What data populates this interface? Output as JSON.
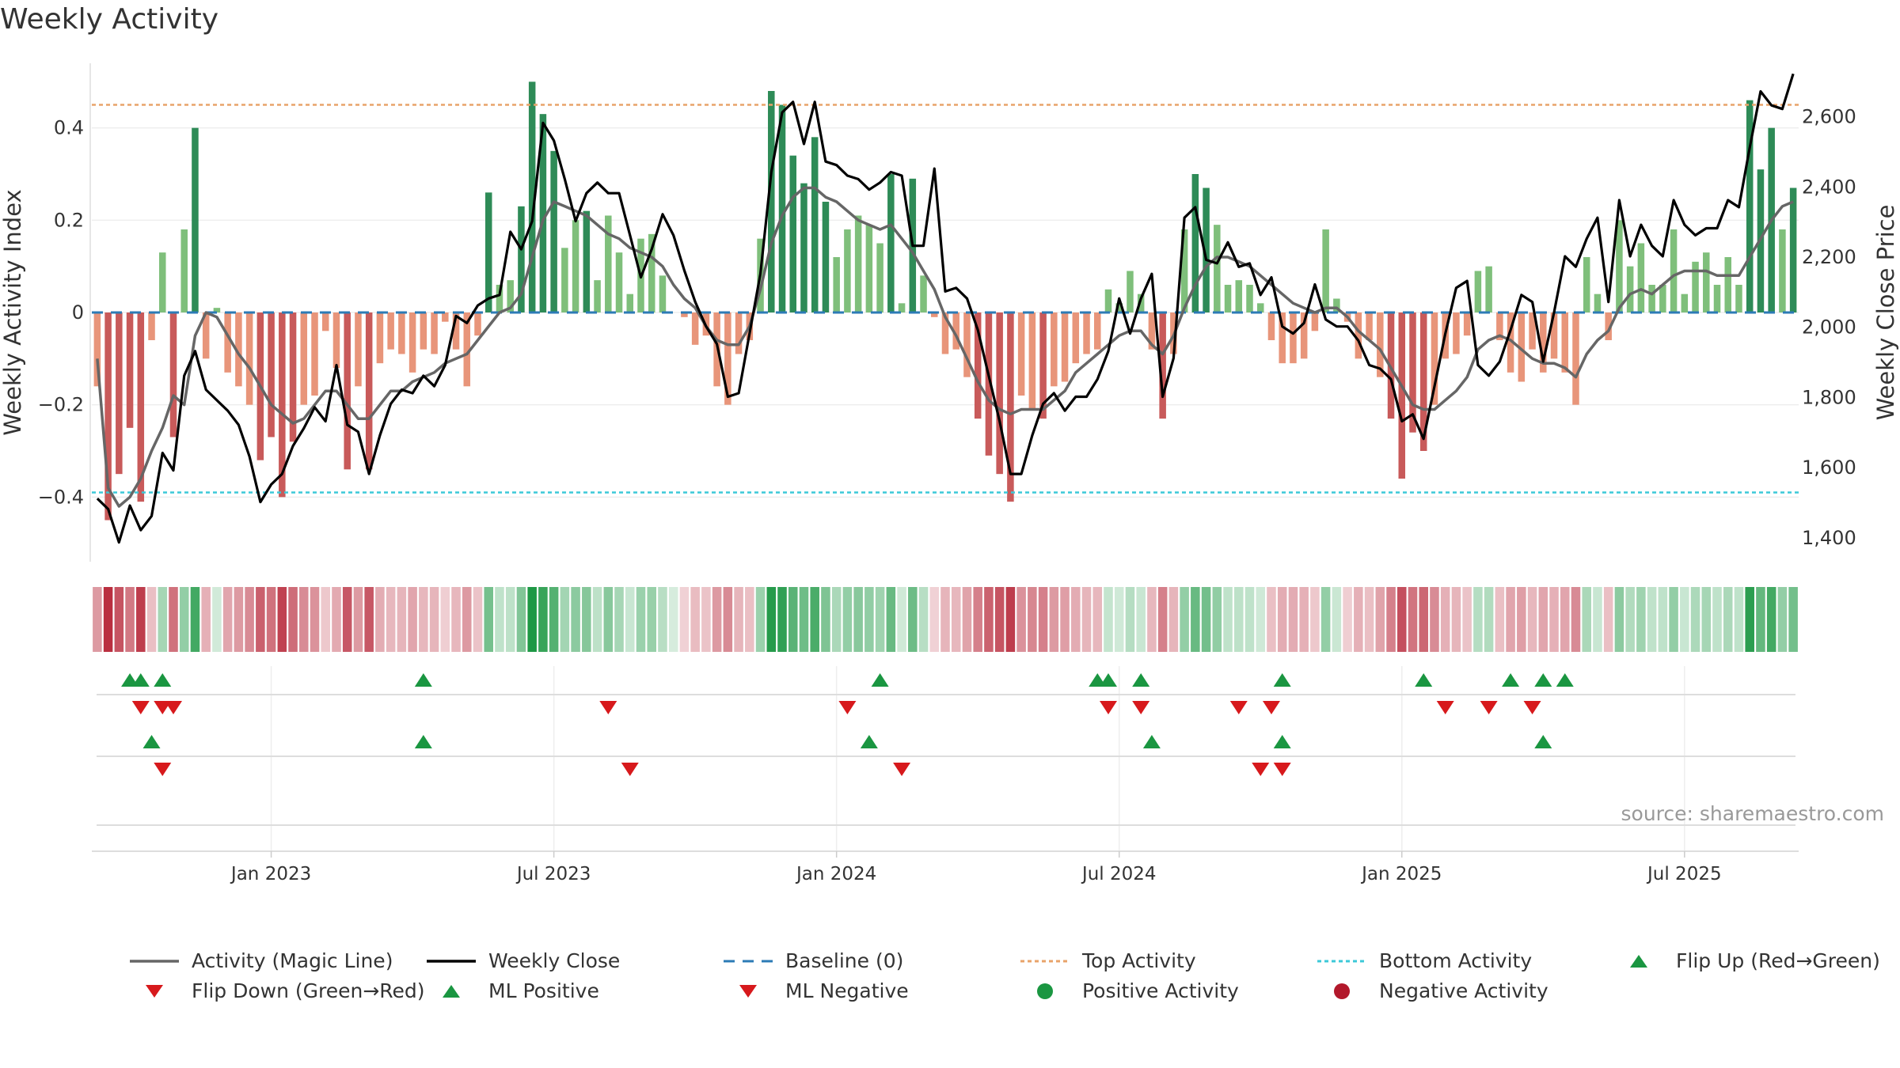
{
  "title": "Weekly Activity",
  "source_text": "source: sharemaestro.com",
  "chart_data": {
    "type": "bar",
    "title": "Weekly Activity",
    "ylabel_left": "Weekly Activity Index",
    "ylabel_right": "Weekly Close Price",
    "left_ylim": [
      -0.54,
      0.54
    ],
    "left_ticks": [
      0.4,
      0.2,
      0,
      -0.2,
      -0.4
    ],
    "left_tick_labels": [
      "0.4",
      "0.2",
      "0",
      "−0.2",
      "−0.4"
    ],
    "right_ylim": [
      1330,
      2750
    ],
    "right_ticks": [
      2600,
      2400,
      2200,
      2000,
      1800,
      1600,
      1400
    ],
    "right_tick_labels": [
      "2,600",
      "2,400",
      "2,200",
      "2,000",
      "1,800",
      "1,600",
      "1,400"
    ],
    "x_ticks": [
      "Jan 2023",
      "Jul 2023",
      "Jan 2024",
      "Jul 2024",
      "Jan 2025",
      "Jul 2025"
    ],
    "x_tick_weeks": [
      16,
      42,
      68,
      94,
      120,
      146
    ],
    "thresholds": {
      "top": 0.45,
      "bottom": -0.39,
      "baseline": 0
    },
    "colors": {
      "pos_strong": "#2e8b57",
      "pos_light": "#7fbf7b",
      "neg_strong": "#c85a5a",
      "neg_light": "#e8957a",
      "magic": "#666666",
      "close": "#000000",
      "top": "#e8a36a",
      "bottom": "#3cc8d8",
      "baseline": "#2c7bb6",
      "up": "#1a9641",
      "down": "#d7191c"
    },
    "activity": [
      -0.16,
      -0.45,
      -0.35,
      -0.25,
      -0.41,
      -0.06,
      0.13,
      -0.27,
      0.18,
      0.4,
      -0.1,
      0.01,
      -0.13,
      -0.16,
      -0.2,
      -0.32,
      -0.27,
      -0.4,
      -0.28,
      -0.2,
      -0.18,
      -0.04,
      -0.12,
      -0.34,
      -0.16,
      -0.34,
      -0.11,
      -0.08,
      -0.09,
      -0.13,
      -0.08,
      -0.09,
      -0.02,
      -0.08,
      -0.16,
      -0.05,
      0.26,
      0.06,
      0.07,
      0.23,
      0.5,
      0.43,
      0.35,
      0.14,
      0.2,
      0.22,
      0.07,
      0.21,
      0.13,
      0.04,
      0.16,
      0.17,
      0.08,
      0,
      -0.01,
      -0.07,
      -0.05,
      -0.16,
      -0.2,
      -0.09,
      -0.06,
      0.16,
      0.48,
      0.45,
      0.34,
      0.28,
      0.38,
      0.24,
      0.12,
      0.18,
      0.21,
      0.19,
      0.15,
      0.3,
      0.02,
      0.29,
      0.08,
      -0.01,
      -0.09,
      -0.08,
      -0.14,
      -0.23,
      -0.31,
      -0.35,
      -0.41,
      -0.18,
      -0.21,
      -0.23,
      -0.16,
      -0.15,
      -0.11,
      -0.09,
      -0.08,
      0.05,
      0.02,
      0.09,
      0.04,
      -0.08,
      -0.23,
      -0.09,
      0.18,
      0.3,
      0.27,
      0.19,
      0.06,
      0.07,
      0.06,
      0.02,
      -0.06,
      -0.11,
      -0.11,
      -0.1,
      -0.04,
      0.18,
      0.03,
      -0.02,
      -0.1,
      -0.06,
      -0.14,
      -0.23,
      -0.36,
      -0.26,
      -0.3,
      -0.2,
      -0.1,
      -0.09,
      -0.05,
      0.09,
      0.1,
      -0.06,
      -0.13,
      -0.15,
      -0.08,
      -0.13,
      -0.1,
      -0.13,
      -0.2,
      0.12,
      0.04,
      -0.06,
      0.2,
      0.1,
      0.15,
      0.06,
      0.06,
      0.18,
      0.04,
      0.11,
      0.13,
      0.06,
      0.12,
      0.06,
      0.46,
      0.31,
      0.4,
      0.18,
      0.27
    ],
    "magic_line": [
      -0.1,
      -0.38,
      -0.42,
      -0.4,
      -0.36,
      -0.3,
      -0.25,
      -0.18,
      -0.2,
      -0.05,
      0.0,
      -0.01,
      -0.05,
      -0.09,
      -0.12,
      -0.16,
      -0.2,
      -0.22,
      -0.24,
      -0.23,
      -0.2,
      -0.17,
      -0.17,
      -0.2,
      -0.23,
      -0.23,
      -0.2,
      -0.17,
      -0.17,
      -0.15,
      -0.14,
      -0.13,
      -0.11,
      -0.1,
      -0.09,
      -0.06,
      -0.03,
      -0.0,
      0.01,
      0.04,
      0.12,
      0.2,
      0.24,
      0.23,
      0.22,
      0.21,
      0.19,
      0.17,
      0.16,
      0.14,
      0.13,
      0.12,
      0.1,
      0.06,
      0.03,
      0.01,
      -0.03,
      -0.06,
      -0.07,
      -0.07,
      -0.03,
      0.05,
      0.15,
      0.21,
      0.25,
      0.27,
      0.27,
      0.25,
      0.24,
      0.22,
      0.2,
      0.19,
      0.18,
      0.19,
      0.16,
      0.13,
      0.09,
      0.05,
      -0.01,
      -0.05,
      -0.1,
      -0.15,
      -0.19,
      -0.21,
      -0.22,
      -0.21,
      -0.21,
      -0.21,
      -0.19,
      -0.17,
      -0.13,
      -0.11,
      -0.09,
      -0.07,
      -0.05,
      -0.04,
      -0.04,
      -0.07,
      -0.09,
      -0.05,
      0.01,
      0.06,
      0.1,
      0.12,
      0.12,
      0.11,
      0.1,
      0.08,
      0.06,
      0.04,
      0.02,
      0.01,
      0.0,
      0.01,
      0.01,
      -0.01,
      -0.04,
      -0.06,
      -0.08,
      -0.12,
      -0.16,
      -0.2,
      -0.21,
      -0.21,
      -0.19,
      -0.17,
      -0.14,
      -0.08,
      -0.06,
      -0.05,
      -0.06,
      -0.08,
      -0.1,
      -0.11,
      -0.11,
      -0.12,
      -0.14,
      -0.09,
      -0.06,
      -0.04,
      0.01,
      0.04,
      0.05,
      0.04,
      0.06,
      0.08,
      0.09,
      0.09,
      0.09,
      0.08,
      0.08,
      0.08,
      0.12,
      0.16,
      0.2,
      0.23,
      0.24
    ],
    "weekly_close": [
      1510,
      1480,
      1385,
      1490,
      1420,
      1460,
      1640,
      1590,
      1860,
      1930,
      1820,
      1790,
      1760,
      1720,
      1630,
      1500,
      1550,
      1580,
      1660,
      1710,
      1770,
      1730,
      1890,
      1720,
      1700,
      1580,
      1690,
      1780,
      1820,
      1810,
      1860,
      1830,
      1890,
      2030,
      2010,
      2060,
      2080,
      2090,
      2270,
      2220,
      2300,
      2580,
      2530,
      2420,
      2300,
      2380,
      2410,
      2380,
      2380,
      2260,
      2140,
      2220,
      2320,
      2260,
      2160,
      2070,
      2000,
      1950,
      1800,
      1810,
      1980,
      2150,
      2440,
      2610,
      2640,
      2520,
      2640,
      2470,
      2460,
      2430,
      2420,
      2390,
      2410,
      2440,
      2430,
      2230,
      2230,
      2450,
      2100,
      2110,
      2080,
      1990,
      1860,
      1730,
      1580,
      1580,
      1690,
      1780,
      1810,
      1760,
      1800,
      1800,
      1850,
      1930,
      2080,
      1980,
      2080,
      2150,
      1800,
      1910,
      2310,
      2340,
      2190,
      2180,
      2240,
      2170,
      2180,
      2090,
      2140,
      2000,
      1980,
      2010,
      2120,
      2020,
      2000,
      2000,
      1960,
      1890,
      1880,
      1850,
      1730,
      1750,
      1680,
      1830,
      1980,
      2110,
      2130,
      1890,
      1860,
      1900,
      1990,
      2090,
      2070,
      1900,
      2040,
      2200,
      2170,
      2250,
      2310,
      2070,
      2360,
      2200,
      2290,
      2230,
      2200,
      2360,
      2290,
      2260,
      2280,
      2280,
      2360,
      2340,
      2510,
      2670,
      2630,
      2620,
      2720
    ],
    "flip_up_weeks": [
      3,
      4,
      6,
      30,
      72,
      92,
      93,
      96,
      109,
      122,
      130,
      133,
      135
    ],
    "flip_down_weeks": [
      4,
      6,
      7,
      47,
      69,
      93,
      96,
      105,
      108,
      124,
      128,
      132
    ],
    "ml_positive_weeks": [
      5,
      30,
      71,
      97,
      109,
      133
    ],
    "ml_negative_weeks": [
      6,
      49,
      74,
      107,
      109
    ],
    "legend": [
      {
        "label": "Activity (Magic Line)",
        "kind": "line-solid",
        "color": "#666666"
      },
      {
        "label": "Weekly Close",
        "kind": "line-solid-black",
        "color": "#000000"
      },
      {
        "label": "Baseline (0)",
        "kind": "line-dash",
        "color": "#2c7bb6"
      },
      {
        "label": "Top Activity",
        "kind": "line-dot",
        "color": "#e8a36a"
      },
      {
        "label": "Bottom Activity",
        "kind": "line-dot",
        "color": "#3cc8d8"
      },
      {
        "label": "Flip Up (Red→Green)",
        "kind": "tri-up",
        "color": "#1a9641"
      },
      {
        "label": "Flip Down (Green→Red)",
        "kind": "tri-down",
        "color": "#d7191c"
      },
      {
        "label": "ML Positive",
        "kind": "tri-up",
        "color": "#1a9641"
      },
      {
        "label": "ML Negative",
        "kind": "tri-down",
        "color": "#d7191c"
      },
      {
        "label": "Positive Activity",
        "kind": "dot",
        "color": "#1a9641"
      },
      {
        "label": "Negative Activity",
        "kind": "dot",
        "color": "#b2182b"
      }
    ]
  }
}
